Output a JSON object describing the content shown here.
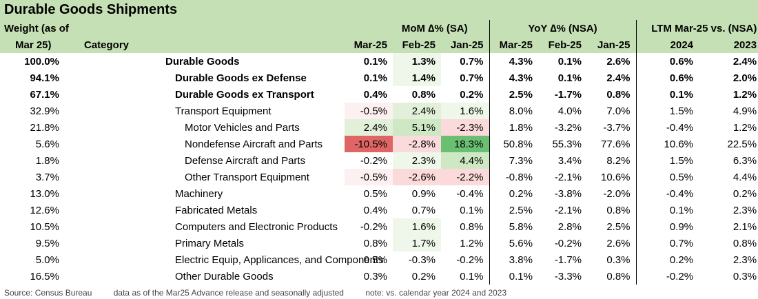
{
  "title": "Durable Goods Shipments",
  "header": {
    "weight_line1": "Weight (as of",
    "weight_line2": "Mar 25)",
    "category": "Category",
    "mom_group": "MoM ∆% (SA)",
    "yoy_group": "YoY ∆% (NSA)",
    "ltm_group": "LTM Mar-25 vs. (NSA)",
    "mom_cols": [
      "Mar-25",
      "Feb-25",
      "Jan-25"
    ],
    "yoy_cols": [
      "Mar-25",
      "Feb-25",
      "Jan-25"
    ],
    "ltm_cols": [
      "2024",
      "2023"
    ]
  },
  "colors": {
    "header_bg": "#c5e0b4",
    "dark_red": "#e06666",
    "light_red": "#fbdadb",
    "dark_green": "#6bbf73",
    "light_green": "#e2f0d9",
    "pale_green": "#eef7ea"
  },
  "rows": [
    {
      "weight": "100.0%",
      "category": "Durable Goods",
      "mom": [
        "0.1%",
        "1.3%",
        "0.7%"
      ],
      "yoy": [
        "4.3%",
        "0.1%",
        "2.6%"
      ],
      "ltm": [
        "0.6%",
        "2.4%"
      ]
    },
    {
      "weight": "94.1%",
      "category": "Durable Goods ex Defense",
      "mom": [
        "0.1%",
        "1.4%",
        "0.7%"
      ],
      "yoy": [
        "4.3%",
        "0.1%",
        "2.4%"
      ],
      "ltm": [
        "0.6%",
        "2.0%"
      ]
    },
    {
      "weight": "67.1%",
      "category": "Durable Goods ex Transport",
      "mom": [
        "0.4%",
        "0.8%",
        "0.2%"
      ],
      "yoy": [
        "2.5%",
        "-1.7%",
        "0.8%"
      ],
      "ltm": [
        "0.1%",
        "1.2%"
      ]
    },
    {
      "weight": "32.9%",
      "category": "Transport Equipment",
      "mom": [
        "-0.5%",
        "2.4%",
        "1.6%"
      ],
      "yoy": [
        "8.0%",
        "4.0%",
        "7.0%"
      ],
      "ltm": [
        "1.5%",
        "4.9%"
      ]
    },
    {
      "weight": "21.8%",
      "category": "Motor Vehicles and Parts",
      "mom": [
        "2.4%",
        "5.1%",
        "-2.3%"
      ],
      "yoy": [
        "1.8%",
        "-3.2%",
        "-3.7%"
      ],
      "ltm": [
        "-0.4%",
        "1.2%"
      ]
    },
    {
      "weight": "5.6%",
      "category": "Nondefense Aircraft and Parts",
      "mom": [
        "-10.5%",
        "-2.8%",
        "18.3%"
      ],
      "yoy": [
        "50.8%",
        "55.3%",
        "77.6%"
      ],
      "ltm": [
        "10.6%",
        "22.5%"
      ]
    },
    {
      "weight": "1.8%",
      "category": "Defense Aircraft and Parts",
      "mom": [
        "-0.2%",
        "2.3%",
        "4.4%"
      ],
      "yoy": [
        "7.3%",
        "3.4%",
        "8.2%"
      ],
      "ltm": [
        "1.5%",
        "6.3%"
      ]
    },
    {
      "weight": "3.7%",
      "category": "Other Transport Equipment",
      "mom": [
        "-0.5%",
        "-2.6%",
        "-2.2%"
      ],
      "yoy": [
        "-0.8%",
        "-2.1%",
        "10.6%"
      ],
      "ltm": [
        "0.5%",
        "4.4%"
      ]
    },
    {
      "weight": "13.0%",
      "category": "Machinery",
      "mom": [
        "0.5%",
        "0.9%",
        "-0.4%"
      ],
      "yoy": [
        "0.2%",
        "-3.8%",
        "-2.0%"
      ],
      "ltm": [
        "-0.4%",
        "0.2%"
      ]
    },
    {
      "weight": "12.6%",
      "category": "Fabricated Metals",
      "mom": [
        "0.4%",
        "0.7%",
        "0.1%"
      ],
      "yoy": [
        "2.5%",
        "-2.1%",
        "0.8%"
      ],
      "ltm": [
        "0.1%",
        "2.3%"
      ]
    },
    {
      "weight": "10.5%",
      "category": "Computers and Electronic Products",
      "mom": [
        "-0.2%",
        "1.6%",
        "0.8%"
      ],
      "yoy": [
        "5.8%",
        "2.8%",
        "2.5%"
      ],
      "ltm": [
        "0.9%",
        "2.1%"
      ]
    },
    {
      "weight": "9.5%",
      "category": "Primary Metals",
      "mom": [
        "0.8%",
        "1.7%",
        "1.2%"
      ],
      "yoy": [
        "5.6%",
        "-0.2%",
        "2.6%"
      ],
      "ltm": [
        "0.7%",
        "0.8%"
      ]
    },
    {
      "weight": "5.0%",
      "category": "Electric Equip, Applicances, and Components",
      "mom": [
        "0.5%",
        "-0.3%",
        "-0.2%"
      ],
      "yoy": [
        "3.8%",
        "-1.7%",
        "0.3%"
      ],
      "ltm": [
        "0.2%",
        "2.3%"
      ]
    },
    {
      "weight": "16.5%",
      "category": "Other Durable Goods",
      "mom": [
        "0.3%",
        "0.2%",
        "0.1%"
      ],
      "yoy": [
        "0.1%",
        "-3.3%",
        "0.8%"
      ],
      "ltm": [
        "-0.2%",
        "0.3%"
      ]
    }
  ],
  "footer": {
    "source": "Source: Census Bureau",
    "note1": "data as of the Mar25 Advance release and seasonally adjusted",
    "note2": "note: vs. calendar year 2024 and 2023"
  }
}
